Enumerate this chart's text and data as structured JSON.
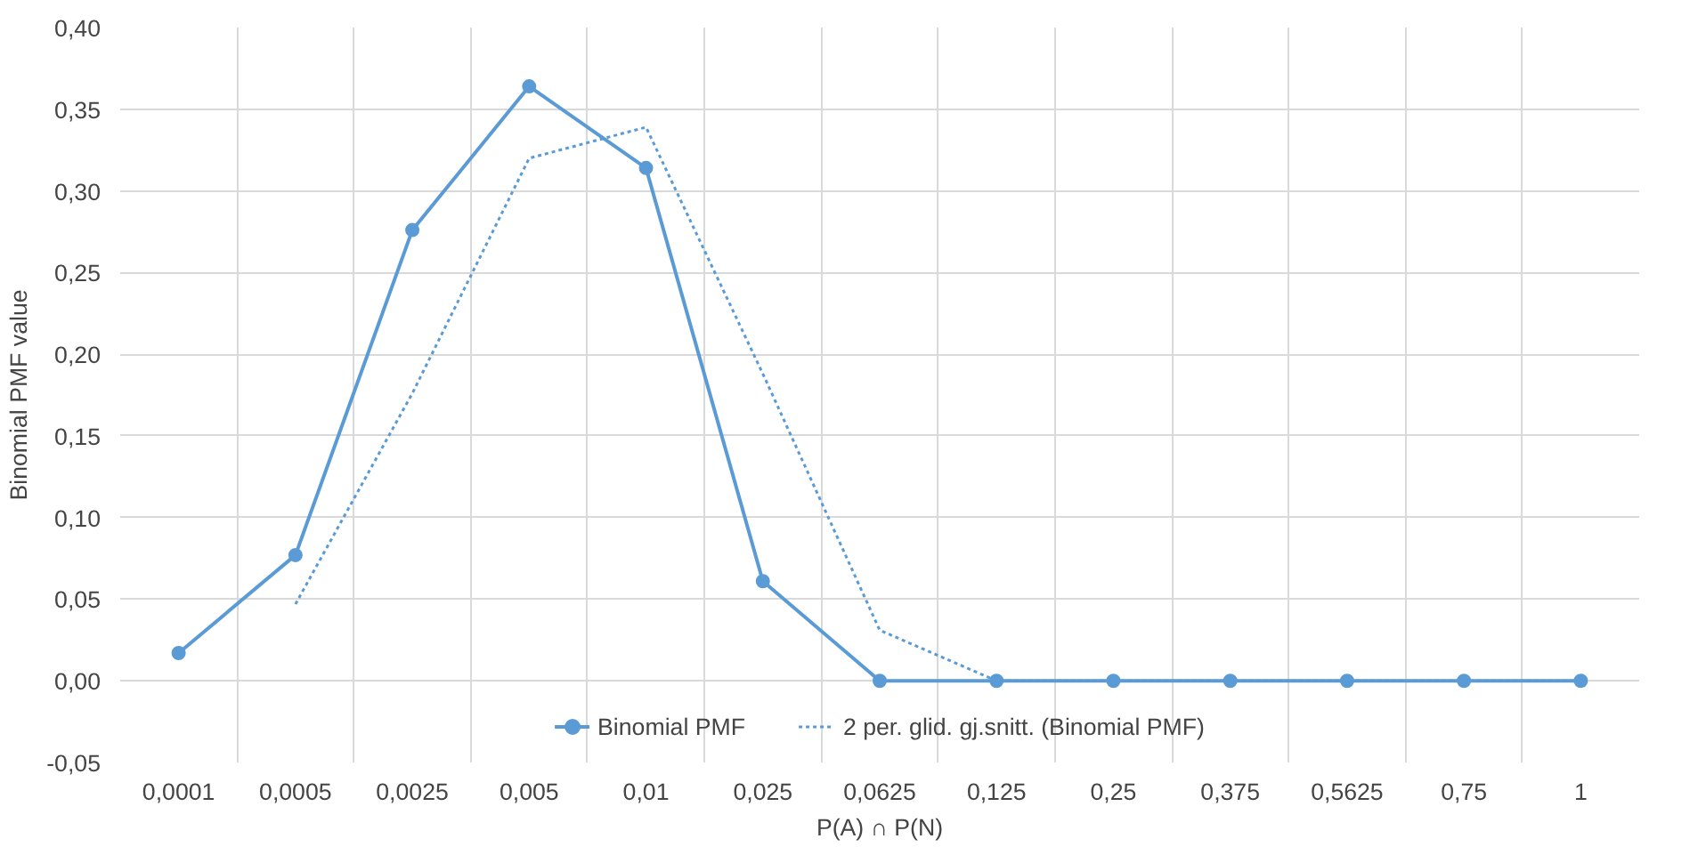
{
  "chart_data": {
    "type": "line",
    "xlabel": "P(A) ∩ P(N)",
    "ylabel": "Binomial PMF value",
    "categories": [
      "0,0001",
      "0,0005",
      "0,0025",
      "0,005",
      "0,01",
      "0,025",
      "0,0625",
      "0,125",
      "0,25",
      "0,375",
      "0,5625",
      "0,75",
      "1"
    ],
    "series": [
      {
        "name": "Binomial PMF",
        "color": "#5b9bd5",
        "marker": "circle",
        "line_style": "solid",
        "values": [
          0.017,
          0.077,
          0.276,
          0.364,
          0.314,
          0.061,
          0.0,
          0.0,
          0.0,
          0.0,
          0.0,
          0.0,
          0.0
        ]
      },
      {
        "name": "2 per. glid. gj.snitt. (Binomial PMF)",
        "color": "#5b9bd5",
        "line_style": "dotted",
        "values": [
          null,
          0.047,
          0.176,
          0.32,
          0.339,
          0.188,
          0.031,
          0.0,
          0.0,
          0.0,
          0.0,
          0.0,
          0.0
        ]
      }
    ],
    "ylim": [
      -0.05,
      0.4
    ],
    "yticks": [
      {
        "value": -0.05,
        "label": "-0,05"
      },
      {
        "value": 0,
        "label": "0,00"
      },
      {
        "value": 0.05,
        "label": "0,05"
      },
      {
        "value": 0.1,
        "label": "0,10"
      },
      {
        "value": 0.15,
        "label": "0,15"
      },
      {
        "value": 0.2,
        "label": "0,20"
      },
      {
        "value": 0.25,
        "label": "0,25"
      },
      {
        "value": 0.3,
        "label": "0,30"
      },
      {
        "value": 0.35,
        "label": "0,35"
      },
      {
        "value": 0.4,
        "label": "0,40"
      }
    ],
    "grid": true,
    "legend": "bottom"
  }
}
